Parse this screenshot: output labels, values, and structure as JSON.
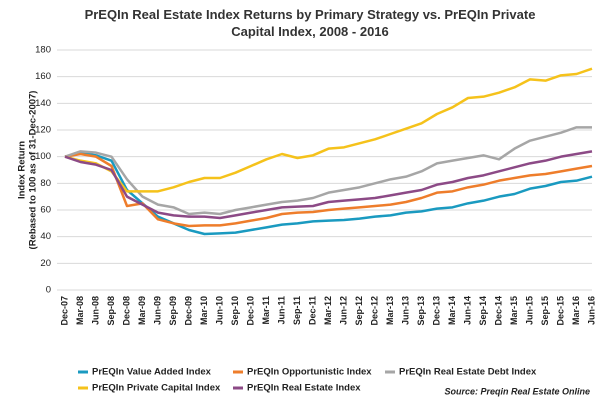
{
  "chart_data": {
    "type": "line",
    "title": "PrEQIn Real Estate Index Returns by Primary Strategy vs. PrEQIn Private Capital Index, 2008 - 2016",
    "y_label": "Index Return",
    "y_label_sub": "(Rebased to 100 as of 31-Dec-2007)",
    "source": "Source: Preqin Real Estate Online",
    "categories": [
      "Dec-07",
      "Mar-08",
      "Jun-08",
      "Sep-08",
      "Dec-08",
      "Mar-09",
      "Jun-09",
      "Sep-09",
      "Dec-09",
      "Mar-10",
      "Jun-10",
      "Sep-10",
      "Dec-10",
      "Mar-11",
      "Jun-11",
      "Sep-11",
      "Dec-11",
      "Mar-12",
      "Jun-12",
      "Sep-12",
      "Dec-12",
      "Mar-13",
      "Jun-13",
      "Sep-13",
      "Dec-13",
      "Mar-14",
      "Jun-14",
      "Sep-14",
      "Dec-14",
      "Mar-15",
      "Jun-15",
      "Sep-15",
      "Dec-15",
      "Mar-16",
      "Jun-16"
    ],
    "ylim": [
      0,
      180
    ],
    "yticks": [
      0,
      20,
      40,
      60,
      80,
      100,
      120,
      140,
      160,
      180
    ],
    "grid": true,
    "legend": "bottom",
    "series": [
      {
        "name": "PrEQIn Value Added Index",
        "color": "#1a9ac0",
        "values": [
          100,
          103,
          101,
          97,
          75,
          65,
          55,
          50,
          45,
          42,
          42.5,
          43,
          45,
          47,
          49,
          50,
          51.5,
          52,
          52.5,
          53.5,
          55,
          56,
          58,
          59,
          61,
          62,
          65,
          67,
          70,
          72,
          76,
          78,
          81,
          82,
          85
        ]
      },
      {
        "name": "PrEQIn Opportunistic Index",
        "color": "#ee7d2b",
        "values": [
          100,
          102,
          100,
          93,
          63,
          65,
          53,
          50,
          48,
          48.5,
          48.5,
          50,
          52,
          54,
          57,
          58,
          58.5,
          60,
          61,
          62,
          63,
          64,
          66,
          69,
          73,
          74,
          77,
          79,
          82,
          84,
          86,
          87,
          89,
          91,
          93
        ]
      },
      {
        "name": "PrEQIn Real Estate Debt Index",
        "color": "#a6a6a6",
        "values": [
          100,
          104,
          103,
          100,
          83,
          70,
          64,
          62,
          57,
          58,
          57,
          60,
          62,
          64,
          66,
          67,
          69,
          73,
          75,
          77,
          80,
          83,
          85,
          89,
          95,
          97,
          99,
          101,
          98,
          106,
          112,
          115,
          118,
          122,
          122
        ]
      },
      {
        "name": "PrEQIn Private Capital Index",
        "color": "#f5c21b",
        "values": [
          100,
          97,
          95,
          89,
          74,
          74,
          74,
          77,
          81,
          84,
          84,
          88,
          93,
          98,
          102,
          99,
          101,
          106,
          107,
          110,
          113,
          117,
          121,
          125,
          132,
          137,
          144,
          145,
          148,
          152,
          158,
          157,
          161,
          162,
          166
        ]
      },
      {
        "name": "PrEQIn Real Estate Index",
        "color": "#8c4a86",
        "values": [
          100,
          96,
          94,
          90,
          70,
          64,
          58,
          56,
          55,
          55,
          54,
          56,
          58,
          60,
          62,
          62.5,
          63,
          66,
          67,
          68,
          69,
          71,
          73,
          75,
          79,
          81,
          84,
          86,
          89,
          92,
          95,
          97,
          100,
          102,
          104
        ]
      }
    ]
  }
}
